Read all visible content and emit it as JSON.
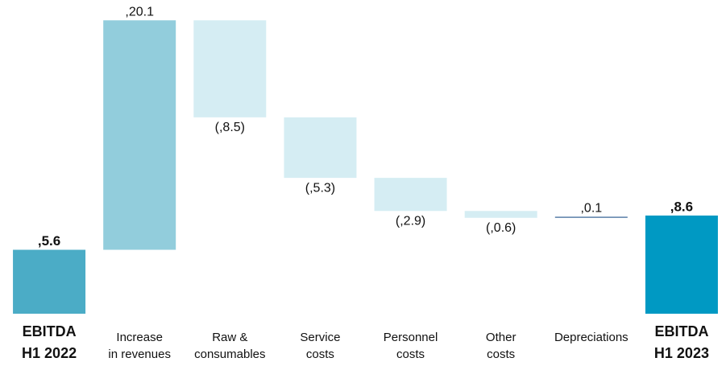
{
  "chart_data": {
    "type": "waterfall",
    "categories": [
      [
        "EBITDA",
        "H1 2022"
      ],
      [
        "Increase",
        "in revenues"
      ],
      [
        "Raw &",
        "consumables"
      ],
      [
        "Service",
        "costs"
      ],
      [
        "Personnel",
        "costs"
      ],
      [
        "Other",
        "costs"
      ],
      [
        "Depreciations"
      ],
      [
        "EBITDA",
        "H1 2023"
      ]
    ],
    "values": [
      5.6,
      20.1,
      -8.5,
      -5.3,
      -2.9,
      -0.6,
      0.1,
      8.6
    ],
    "value_labels": [
      ",5.6",
      ",20.1",
      "(,8.5)",
      "(,5.3)",
      "(,2.9)",
      "(,0.6)",
      ",0.1",
      ",8.6"
    ],
    "colors": [
      "#4bacc6",
      "#92cddc",
      "#d5edf3",
      "#d5edf3",
      "#d5edf3",
      "#d5edf3",
      "#5b7fa8",
      "#0099c3"
    ],
    "ylim": [
      0,
      26
    ]
  }
}
